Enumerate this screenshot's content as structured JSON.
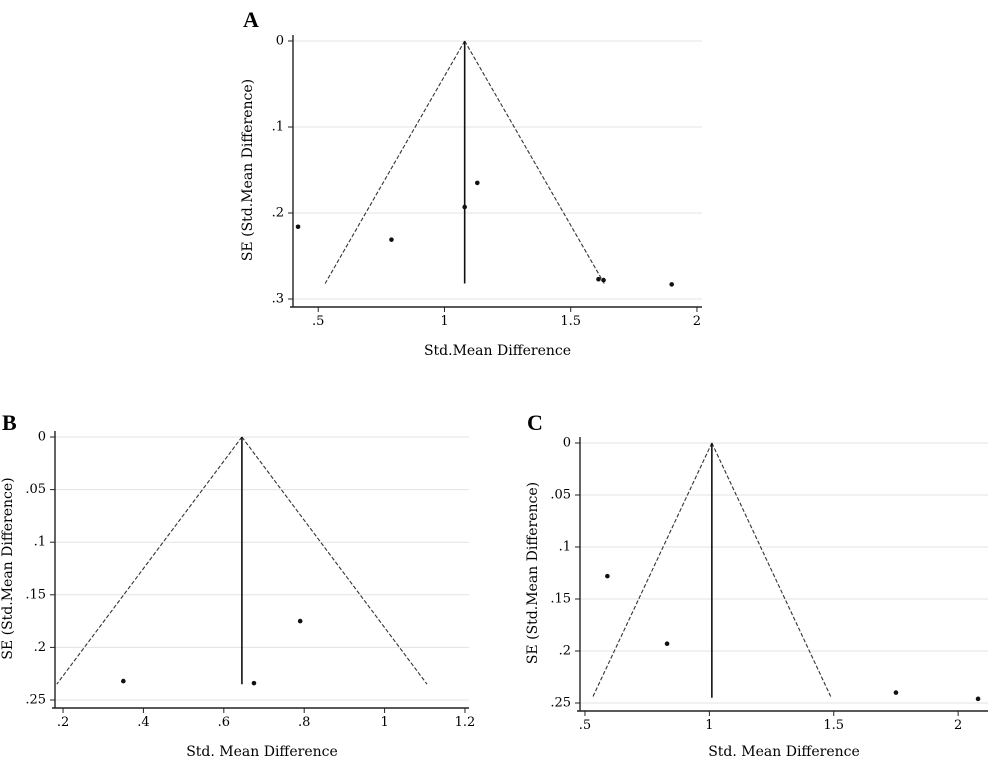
{
  "chart_data": [
    {
      "panel": "A",
      "type": "scatter",
      "subtype": "funnel",
      "xlabel": "Std.Mean Difference",
      "ylabel": "SE (Std.Mean Difference)",
      "xlim": [
        0.4,
        2.02
      ],
      "ylim": [
        0.3,
        0
      ],
      "y_reversed": true,
      "xticks": [
        {
          "v": 0.5,
          "t": ".5"
        },
        {
          "v": 1,
          "t": "1"
        },
        {
          "v": 1.5,
          "t": "1.5"
        },
        {
          "v": 2,
          "t": "2"
        }
      ],
      "yticks": [
        {
          "v": 0,
          "t": "0"
        },
        {
          "v": 0.1,
          "t": ".1"
        },
        {
          "v": 0.2,
          "t": ".2"
        },
        {
          "v": 0.3,
          "t": ".3"
        }
      ],
      "grid": true,
      "pooled": 1.08,
      "funnel_se_max": 0.282,
      "points": [
        {
          "x": 0.42,
          "y": 0.216
        },
        {
          "x": 0.79,
          "y": 0.231
        },
        {
          "x": 1.08,
          "y": 0.193
        },
        {
          "x": 1.13,
          "y": 0.165
        },
        {
          "x": 1.61,
          "y": 0.277
        },
        {
          "x": 1.63,
          "y": 0.278
        },
        {
          "x": 1.9,
          "y": 0.283
        }
      ]
    },
    {
      "panel": "B",
      "type": "scatter",
      "subtype": "funnel",
      "xlabel": "Std. Mean Difference",
      "ylabel": "SE (Std.Mean Difference)",
      "xlim": [
        0.18,
        1.21
      ],
      "ylim": [
        0.25,
        0
      ],
      "y_reversed": true,
      "xticks": [
        {
          "v": 0.2,
          "t": ".2"
        },
        {
          "v": 0.4,
          "t": ".4"
        },
        {
          "v": 0.6,
          "t": ".6"
        },
        {
          "v": 0.8,
          "t": ".8"
        },
        {
          "v": 1,
          "t": "1"
        },
        {
          "v": 1.2,
          "t": "1.2"
        }
      ],
      "yticks": [
        {
          "v": 0,
          "t": "0"
        },
        {
          "v": 0.05,
          "t": ".05"
        },
        {
          "v": 0.1,
          "t": ".1"
        },
        {
          "v": 0.15,
          "t": ".15"
        },
        {
          "v": 0.2,
          "t": ".2"
        },
        {
          "v": 0.25,
          "t": ".25"
        }
      ],
      "grid": true,
      "pooled": 0.645,
      "funnel_se_max": 0.235,
      "points": [
        {
          "x": 0.35,
          "y": 0.232
        },
        {
          "x": 0.675,
          "y": 0.234
        },
        {
          "x": 0.79,
          "y": 0.175
        }
      ]
    },
    {
      "panel": "C",
      "type": "scatter",
      "subtype": "funnel",
      "xlabel": "Std. Mean Difference",
      "ylabel": "SE (Std.Mean Difference)",
      "xlim": [
        0.48,
        2.12
      ],
      "ylim": [
        0.25,
        0
      ],
      "y_reversed": true,
      "xticks": [
        {
          "v": 0.5,
          "t": ".5"
        },
        {
          "v": 1,
          "t": "1"
        },
        {
          "v": 1.5,
          "t": "1.5"
        },
        {
          "v": 2,
          "t": "2"
        }
      ],
      "yticks": [
        {
          "v": 0,
          "t": "0"
        },
        {
          "v": 0.05,
          "t": ".05"
        },
        {
          "v": 0.1,
          "t": ".1"
        },
        {
          "v": 0.15,
          "t": ".15"
        },
        {
          "v": 0.2,
          "t": ".2"
        },
        {
          "v": 0.25,
          "t": ".25"
        }
      ],
      "grid": true,
      "pooled": 1.01,
      "funnel_se_max": 0.245,
      "points": [
        {
          "x": 0.59,
          "y": 0.128
        },
        {
          "x": 0.83,
          "y": 0.193
        },
        {
          "x": 1.75,
          "y": 0.24
        },
        {
          "x": 2.08,
          "y": 0.246
        }
      ]
    }
  ]
}
